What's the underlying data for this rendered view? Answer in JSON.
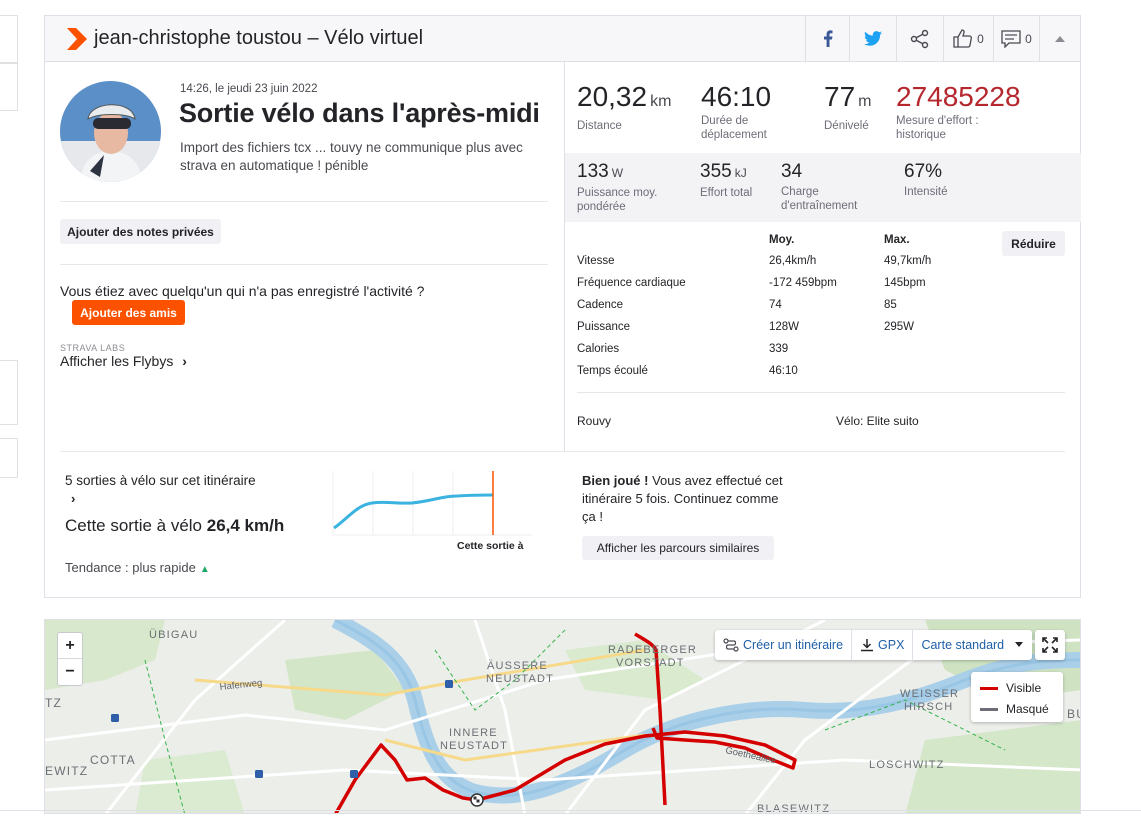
{
  "header": {
    "title": "jean-christophe toustou – Vélo virtuel",
    "kudos_count": "0",
    "comment_count": "0"
  },
  "activity": {
    "datetime": "14:26, le jeudi 23 juin 2022",
    "title": "Sortie vélo dans l'après-midi",
    "description": "Import des fichiers tcx ... touvy ne communique plus avec strava en automatique ! pénible",
    "private_notes_button": "Ajouter des notes privées",
    "with_question": "Vous étiez avec quelqu'un qui n'a pas enregistré l'activité ?",
    "add_friends_button": "Ajouter des amis",
    "labs_tag": "STRAVA LABS",
    "flyby_link": "Afficher les Flybys"
  },
  "primary_stats": [
    {
      "value": "20,32",
      "unit": "km",
      "label": "Distance"
    },
    {
      "value": "46:10",
      "unit": "",
      "label": "Durée de déplacement"
    },
    {
      "value": "77",
      "unit": "m",
      "label": "Dénivelé"
    },
    {
      "value": "27485228",
      "unit": "",
      "label": "Mesure d'effort : historique"
    }
  ],
  "secondary_stats": [
    {
      "value": "133",
      "unit": "W",
      "label": "Puissance moy. pondérée"
    },
    {
      "value": "355",
      "unit": "kJ",
      "label": "Effort total"
    },
    {
      "value": "34",
      "unit": "",
      "label": "Charge d'entraînement"
    },
    {
      "value": "67%",
      "unit": "",
      "label": "Intensité"
    }
  ],
  "more_stats": {
    "col_avg": "Moy.",
    "col_max": "Max.",
    "reduce_button": "Réduire",
    "rows": [
      {
        "label": "Vitesse",
        "avg": "26,4km/h",
        "max": "49,7km/h"
      },
      {
        "label": "Fréquence cardiaque",
        "avg": "-172 459bpm",
        "max": "145bpm"
      },
      {
        "label": "Cadence",
        "avg": "74",
        "max": "85"
      },
      {
        "label": "Puissance",
        "avg": "128W",
        "max": "295W"
      },
      {
        "label": "Calories",
        "avg": "339",
        "max": ""
      },
      {
        "label": "Temps écoulé",
        "avg": "46:10",
        "max": ""
      }
    ],
    "device": "Rouvy",
    "bike": "Vélo: Elite suito"
  },
  "segment": {
    "count_text": "5 sorties à vélo sur cet itinéraire",
    "speed_prefix": "Cette sortie à vélo ",
    "speed_value": "26,4 km/h",
    "trend": "Tendance : plus rapide",
    "spark_label": "Cette sortie à",
    "bravo_bold": "Bien joué !",
    "bravo_text": " Vous avez effectué cet itinéraire 5 fois. Continuez comme ça !",
    "similar_button": "Afficher les parcours similaires"
  },
  "map": {
    "zoom_in": "+",
    "zoom_out": "−",
    "create_route": "Créer un itinéraire",
    "gpx": "GPX",
    "map_type": "Carte standard",
    "legend_visible": "Visible",
    "legend_hidden": "Masqué",
    "route_color": "#d40000",
    "places": {
      "p1": "ÜBIGAU",
      "p2": "RADEBERGER",
      "p3": "VORSTADT",
      "p4": "ÄUSSERE",
      "p5": "NEUSTADT",
      "p6": "INNERE",
      "p7": "NEUSTADT",
      "p8": "WEISSER",
      "p9": "HIRSCH",
      "p10": "COTTA",
      "p11": "LOSCHWITZ",
      "p12": "BLASEWITZ",
      "p13": "Hafenweg",
      "p14": "Goetheallee",
      "p15": "TZ",
      "p16": "EWITZ",
      "p17": "BU"
    }
  },
  "colors": {
    "brand_orange": "#fc5200",
    "effort_red": "#b5272d",
    "link_blue": "#1f5fa8",
    "spark_line": "#3bb3e0"
  }
}
